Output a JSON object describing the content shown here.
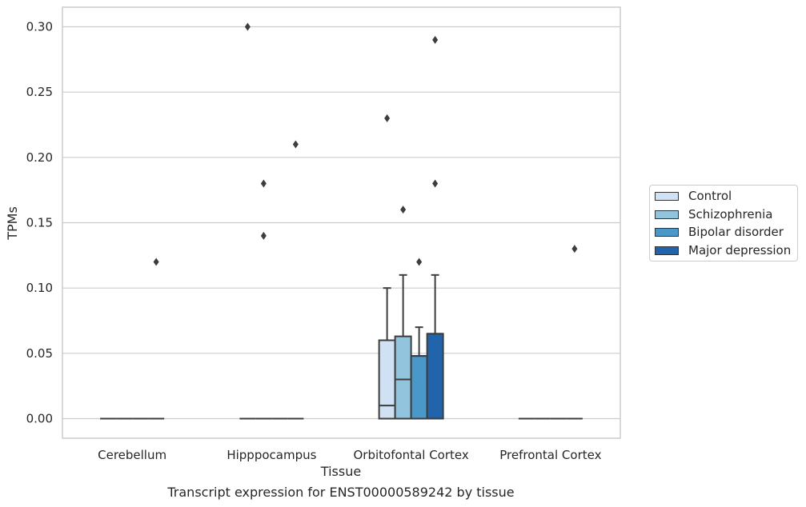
{
  "caption": "Transcript expression for ENST00000589242 by tissue",
  "legend": {
    "items": [
      {
        "label": "Control",
        "color": "#cfe1f2"
      },
      {
        "label": "Schizophrenia",
        "color": "#93c4de"
      },
      {
        "label": "Bipolar disorder",
        "color": "#4a98c9"
      },
      {
        "label": "Major depression",
        "color": "#2164ab"
      }
    ]
  },
  "chart_data": {
    "type": "box",
    "xlabel": "Tissue",
    "ylabel": "TPMs",
    "ylim": [
      -0.015,
      0.315
    ],
    "yticks": [
      "0.00",
      "0.05",
      "0.10",
      "0.15",
      "0.20",
      "0.25",
      "0.30"
    ],
    "grid": "horizontal",
    "legend_position": "right",
    "categories": [
      "Cerebellum",
      "Hipppocampus",
      "Orbitofontal Cortex",
      "Prefrontal Cortex"
    ],
    "series": [
      {
        "name": "Control",
        "color": "#cfe1f2",
        "boxes": [
          {
            "q1": 0,
            "median": 0,
            "q3": 0,
            "whislo": 0,
            "whishi": 0,
            "fliers": []
          },
          {
            "q1": 0,
            "median": 0,
            "q3": 0,
            "whislo": 0,
            "whishi": 0,
            "fliers": [
              0.3
            ]
          },
          {
            "q1": 0,
            "median": 0.01,
            "q3": 0.06,
            "whislo": 0,
            "whishi": 0.1,
            "fliers": [
              0.23
            ]
          },
          {
            "q1": 0,
            "median": 0,
            "q3": 0,
            "whislo": 0,
            "whishi": 0,
            "fliers": []
          }
        ]
      },
      {
        "name": "Schizophrenia",
        "color": "#93c4de",
        "boxes": [
          {
            "q1": 0,
            "median": 0,
            "q3": 0,
            "whislo": 0,
            "whishi": 0,
            "fliers": []
          },
          {
            "q1": 0,
            "median": 0,
            "q3": 0,
            "whislo": 0,
            "whishi": 0,
            "fliers": [
              0.18,
              0.14
            ]
          },
          {
            "q1": 0,
            "median": 0.03,
            "q3": 0.063,
            "whislo": 0,
            "whishi": 0.11,
            "fliers": [
              0.16
            ]
          },
          {
            "q1": 0,
            "median": 0,
            "q3": 0,
            "whislo": 0,
            "whishi": 0,
            "fliers": []
          }
        ]
      },
      {
        "name": "Bipolar disorder",
        "color": "#4a98c9",
        "boxes": [
          {
            "q1": 0,
            "median": 0,
            "q3": 0,
            "whislo": 0,
            "whishi": 0,
            "fliers": []
          },
          {
            "q1": 0,
            "median": 0,
            "q3": 0,
            "whislo": 0,
            "whishi": 0,
            "fliers": []
          },
          {
            "q1": 0,
            "median": 0.048,
            "q3": 0.048,
            "whislo": 0,
            "whishi": 0.07,
            "fliers": [
              0.12
            ]
          },
          {
            "q1": 0,
            "median": 0,
            "q3": 0,
            "whislo": 0,
            "whishi": 0,
            "fliers": []
          }
        ]
      },
      {
        "name": "Major depression",
        "color": "#2164ab",
        "boxes": [
          {
            "q1": 0,
            "median": 0,
            "q3": 0,
            "whislo": 0,
            "whishi": 0,
            "fliers": [
              0.12
            ]
          },
          {
            "q1": 0,
            "median": 0,
            "q3": 0,
            "whislo": 0,
            "whishi": 0,
            "fliers": [
              0.21
            ]
          },
          {
            "q1": 0,
            "median": 0.065,
            "q3": 0.065,
            "whislo": 0,
            "whishi": 0.11,
            "fliers": [
              0.29,
              0.18
            ]
          },
          {
            "q1": 0,
            "median": 0,
            "q3": 0,
            "whislo": 0,
            "whishi": 0,
            "fliers": [
              0.13
            ]
          }
        ]
      }
    ]
  }
}
